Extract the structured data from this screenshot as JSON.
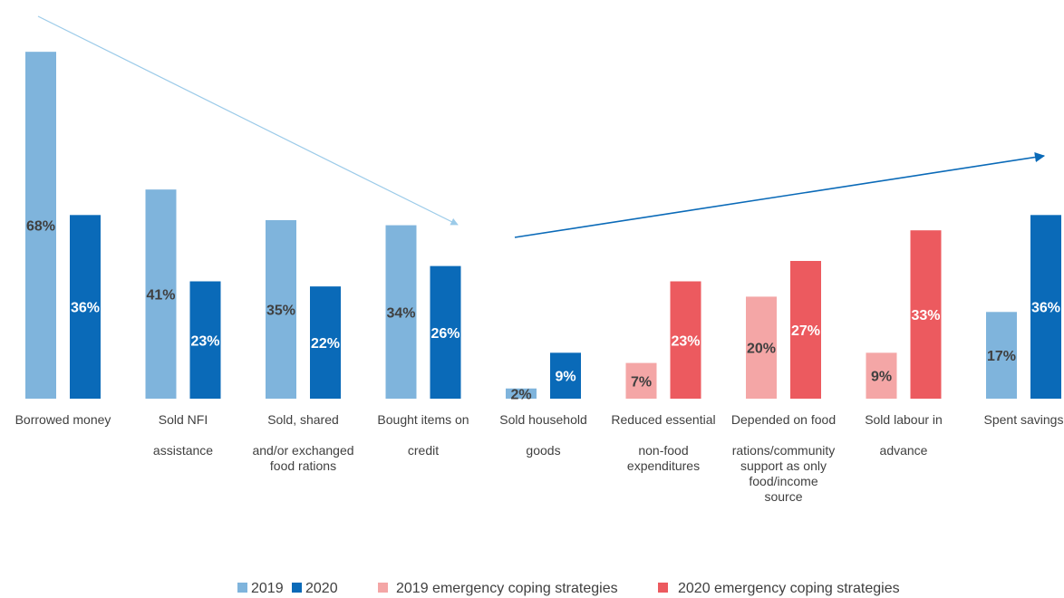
{
  "chart_data": {
    "type": "bar",
    "categories": [
      {
        "lines": [
          "Borrowed money"
        ]
      },
      {
        "lines": [
          "Sold NFI",
          "",
          "assistance"
        ]
      },
      {
        "lines": [
          "Sold, shared",
          "",
          "and/or exchanged",
          "food rations"
        ]
      },
      {
        "lines": [
          "Bought items on",
          "",
          "credit"
        ]
      },
      {
        "lines": [
          "Sold household",
          "",
          "goods"
        ]
      },
      {
        "lines": [
          "Reduced essential",
          "",
          "non-food",
          "expenditures"
        ]
      },
      {
        "lines": [
          "Depended on food",
          "",
          "rations/community",
          "support as only",
          "food/income",
          "source"
        ]
      },
      {
        "lines": [
          "Sold labour in",
          "",
          "advance"
        ]
      },
      {
        "lines": [
          "Spent savings"
        ]
      }
    ],
    "series": [
      {
        "values": [
          68,
          41,
          35,
          34,
          2,
          7,
          20,
          9,
          17
        ],
        "labels": [
          "68%",
          "41%",
          "35%",
          "34%",
          "2%",
          "7%",
          "20%",
          "9%",
          "17%"
        ],
        "colors": [
          "#7fb4dc",
          "#7fb4dc",
          "#7fb4dc",
          "#7fb4dc",
          "#7fb4dc",
          "#f4a6a6",
          "#f4a6a6",
          "#f4a6a6",
          "#7fb4dc"
        ],
        "label_color": "#404040"
      },
      {
        "values": [
          36,
          23,
          22,
          26,
          9,
          23,
          27,
          33,
          36
        ],
        "labels": [
          "36%",
          "23%",
          "22%",
          "26%",
          "9%",
          "23%",
          "27%",
          "33%",
          "36%"
        ],
        "colors": [
          "#0a6ab8",
          "#0a6ab8",
          "#0a6ab8",
          "#0a6ab8",
          "#0a6ab8",
          "#ec5a5f",
          "#ec5a5f",
          "#ec5a5f",
          "#0a6ab8"
        ],
        "label_color": "#ffffff"
      }
    ],
    "legend": {
      "position": "bottom",
      "items": [
        {
          "label": "2019",
          "color": "#7fb4dc"
        },
        {
          "label": "2020",
          "color": "#0a6ab8"
        },
        {
          "label": "2019 emergency coping strategies",
          "color": "#f4a6a6"
        },
        {
          "label": "2020 emergency coping strategies",
          "color": "#ec5a5f"
        }
      ]
    },
    "annotations": [
      {
        "name": "decreasing-trend-arrow",
        "color": "#9ccbe9"
      },
      {
        "name": "increasing-trend-arrow",
        "color": "#0a6ab8"
      }
    ],
    "grid": false
  }
}
